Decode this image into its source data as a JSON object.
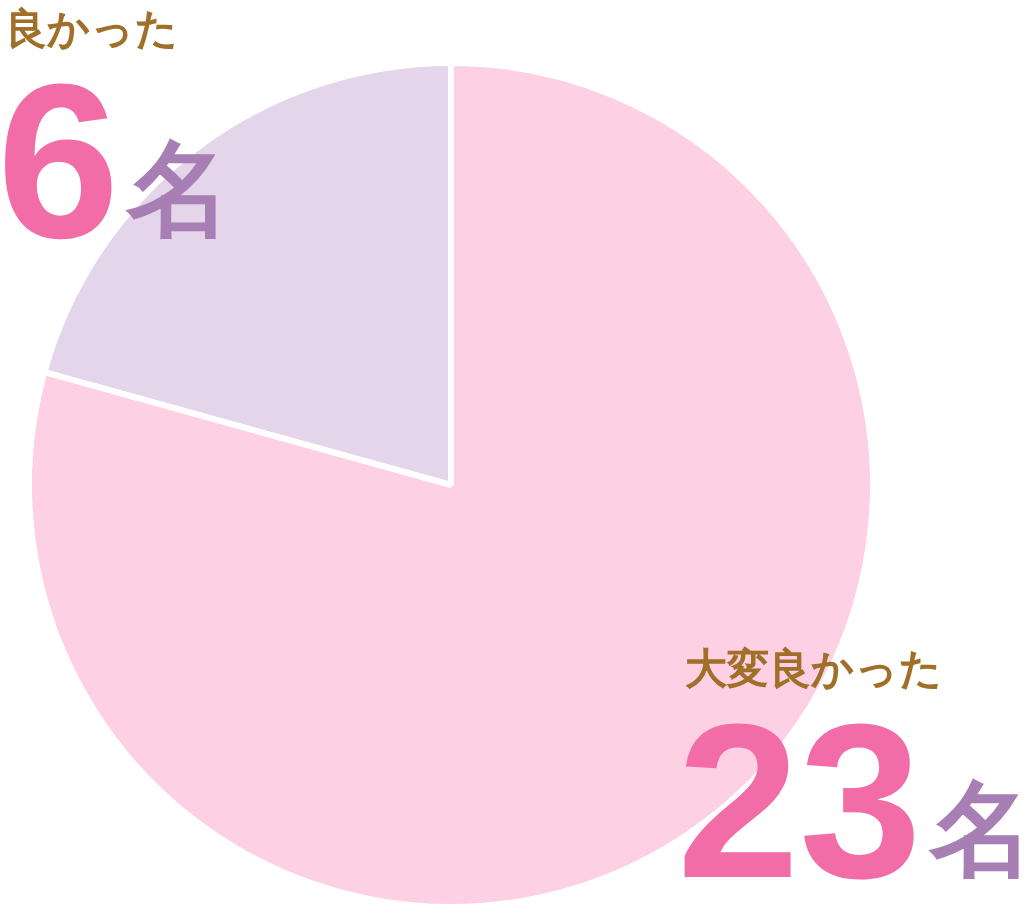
{
  "chart_data": {
    "type": "pie",
    "categories": [
      "良かった",
      "大変良かった"
    ],
    "values": [
      6,
      23
    ],
    "colors": [
      "#e5d5ea",
      "#fdd0e3"
    ],
    "value_labels": [
      "6名",
      "23名"
    ]
  }
}
